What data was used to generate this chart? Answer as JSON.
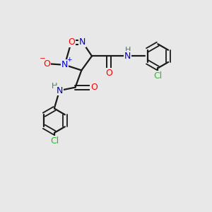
{
  "background_color": "#e8e8e8",
  "bond_color": "#1a1a1a",
  "atom_colors": {
    "O": "#ff0000",
    "N": "#0000cc",
    "C": "#1a1a1a",
    "H": "#507070",
    "Cl": "#2db82d"
  },
  "figsize": [
    3.0,
    3.0
  ],
  "dpi": 100
}
